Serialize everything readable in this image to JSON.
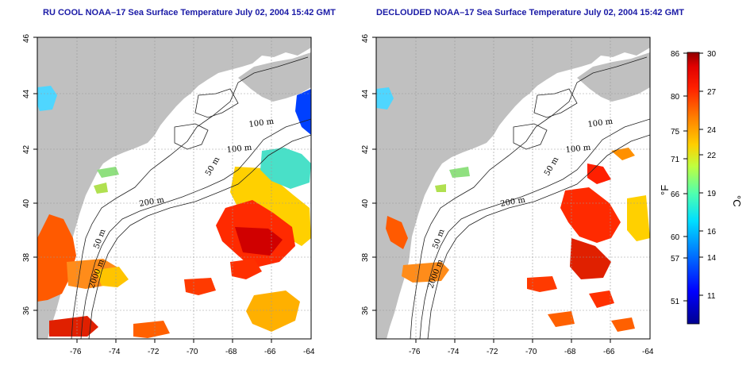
{
  "left_map": {
    "title": "RU COOL NOAA–17 Sea Surface Temperature July 02, 2004 15:42 GMT",
    "lon_ticks": [
      "-76",
      "-74",
      "-72",
      "-70",
      "-68",
      "-66",
      "-64"
    ],
    "lat_ticks": [
      "36",
      "38",
      "40",
      "42",
      "44",
      "46"
    ],
    "isobath_labels": [
      "100 m",
      "100 m",
      "50 m",
      "200 m",
      "50 m",
      "2000 m"
    ]
  },
  "right_map": {
    "title": "DECLOUDED NOAA–17 Sea Surface Temperature July 02, 2004 15:42 GMT",
    "lon_ticks": [
      "-76",
      "-74",
      "-72",
      "-70",
      "-68",
      "-66",
      "-64"
    ],
    "lat_ticks": [
      "36",
      "38",
      "40",
      "42",
      "44",
      "46"
    ],
    "isobath_labels": [
      "100 m",
      "100 m",
      "50 m",
      "200 m",
      "50 m",
      "2000 m"
    ]
  },
  "colorbar": {
    "fahrenheit_ticks": [
      "86",
      "80",
      "75",
      "71",
      "66",
      "60",
      "57",
      "51"
    ],
    "celsius_ticks": [
      "30",
      "27",
      "24",
      "22",
      "19",
      "16",
      "14",
      "11"
    ],
    "fahrenheit_label": "°F",
    "celsius_label": "°C",
    "colors": [
      "#00008f",
      "#0000ff",
      "#006fff",
      "#00dfff",
      "#4fffaf",
      "#bfff3f",
      "#ffcf00",
      "#ff7f00",
      "#ff1f00",
      "#df0000",
      "#8f0000"
    ]
  },
  "colors": {
    "land": "#c0c0c0",
    "ocean": "#ffffff",
    "title": "#1a1aa6",
    "grid": "#9a9a9a"
  }
}
